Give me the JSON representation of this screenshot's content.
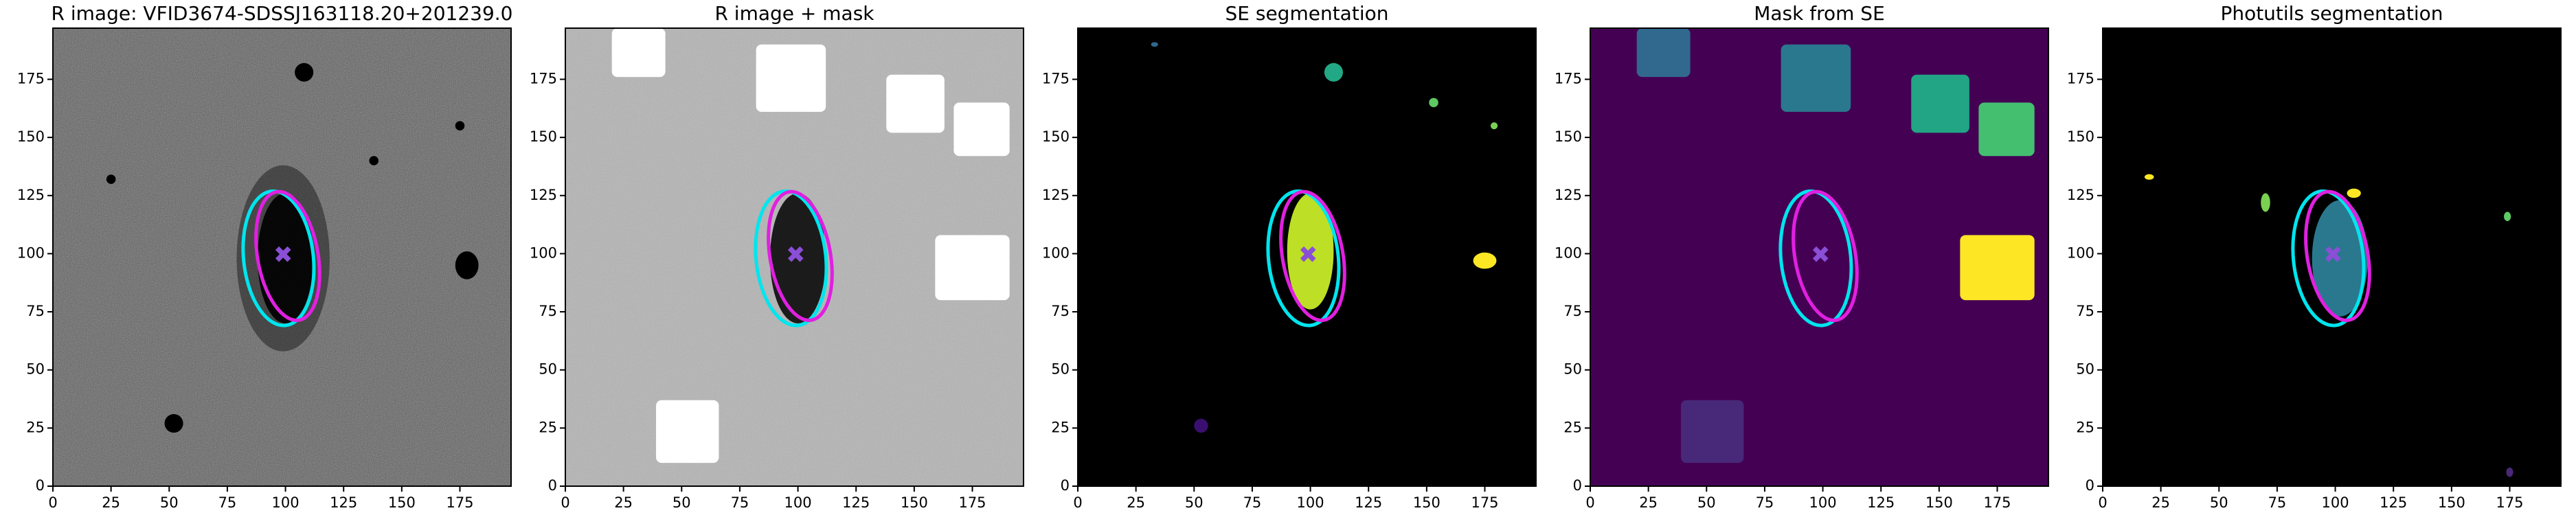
{
  "chart_data": [
    {
      "type": "image",
      "title": "R image: VFID3674-SDSSJ163118.20+201239.0",
      "background": "#5a5a5a",
      "xlim": [
        0,
        197
      ],
      "ylim": [
        0,
        197
      ],
      "xticks": [
        0,
        25,
        50,
        75,
        100,
        125,
        150,
        175
      ],
      "yticks": [
        0,
        25,
        50,
        75,
        100,
        125,
        150,
        175
      ]
    },
    {
      "type": "image",
      "title": "R image + mask",
      "background": "#b4b4b4",
      "xlim": [
        0,
        197
      ],
      "ylim": [
        0,
        197
      ],
      "xticks": [
        0,
        25,
        50,
        75,
        100,
        125,
        150,
        175
      ],
      "yticks": [
        0,
        25,
        50,
        75,
        100,
        125,
        150,
        175
      ]
    },
    {
      "type": "image",
      "title": "SE segmentation",
      "background": "#000000",
      "xlim": [
        0,
        197
      ],
      "ylim": [
        0,
        197
      ],
      "xticks": [
        0,
        25,
        50,
        75,
        100,
        125,
        150,
        175
      ],
      "yticks": [
        0,
        25,
        50,
        75,
        100,
        125,
        150,
        175
      ]
    },
    {
      "type": "image",
      "title": "Mask from SE",
      "background": "#440154",
      "xlim": [
        0,
        197
      ],
      "ylim": [
        0,
        197
      ],
      "xticks": [
        0,
        25,
        50,
        75,
        100,
        125,
        150,
        175
      ],
      "yticks": [
        0,
        25,
        50,
        75,
        100,
        125,
        150,
        175
      ]
    },
    {
      "type": "image",
      "title": "Photutils segmentation",
      "background": "#000000",
      "xlim": [
        0,
        197
      ],
      "ylim": [
        0,
        197
      ],
      "xticks": [
        0,
        25,
        50,
        75,
        100,
        125,
        150,
        175
      ],
      "yticks": [
        0,
        25,
        50,
        75,
        100,
        125,
        150,
        175
      ]
    }
  ]
}
